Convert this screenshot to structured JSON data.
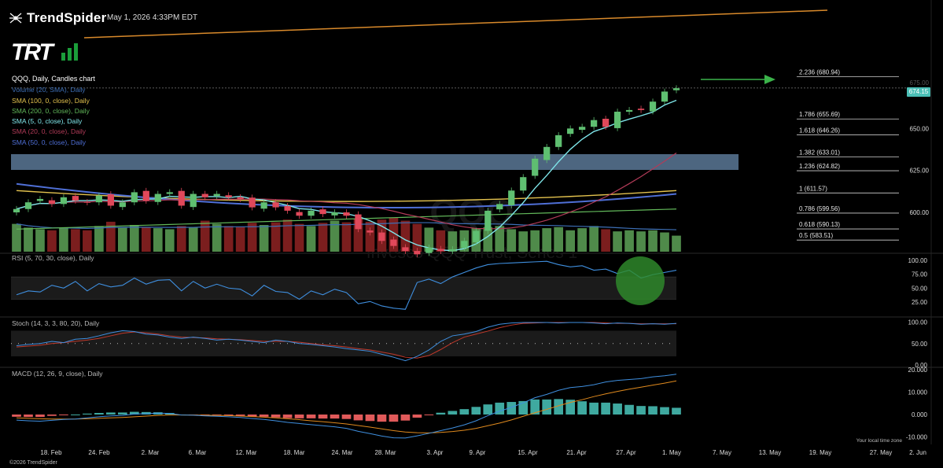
{
  "header": {
    "brand": "TrendSpider",
    "timestamp": "May 1, 2026 4:33PM EDT",
    "logo_text": "TRT"
  },
  "legend": {
    "title": "QQQ, Daily, Candles chart",
    "items": [
      {
        "label": "Volume (20, SMA), Daily",
        "color": "#3d6fb6"
      },
      {
        "label": "SMA (100, 0, close), Daily",
        "color": "#e3c24e"
      },
      {
        "label": "SMA (200, 0, close), Daily",
        "color": "#62b85a"
      },
      {
        "label": "SMA (5, 0, close), Daily",
        "color": "#7fe6ea"
      },
      {
        "label": "SMA (20, 0, close), Daily",
        "color": "#b23b58"
      },
      {
        "label": "SMA (50, 0, close), Daily",
        "color": "#4f6fd6"
      }
    ]
  },
  "watermark": {
    "symbol": "QQQ",
    "name": "Invesco QQQ Trust, Series 1"
  },
  "price_tag": "674.15",
  "chart_data": {
    "type": "candlestick",
    "symbol": "QQQ",
    "interval": "Daily",
    "x_ticks": [
      "18. Feb",
      "24. Feb",
      "2. Mar",
      "6. Mar",
      "12. Mar",
      "18. Mar",
      "24. Mar",
      "28. Mar",
      "3. Apr",
      "9. Apr",
      "15. Apr",
      "21. Apr",
      "27. Apr",
      "1. May",
      "7. May",
      "13. May",
      "19. May",
      "27. May",
      "2. Jun"
    ],
    "y_ticks": [
      600,
      625,
      650,
      675
    ],
    "fibonacci": [
      {
        "level": "2.236",
        "price": 680.94
      },
      {
        "level": "1.786",
        "price": 655.69
      },
      {
        "level": "1.618",
        "price": 646.26
      },
      {
        "level": "1.382",
        "price": 633.01
      },
      {
        "level": "1.236",
        "price": 624.82
      },
      {
        "level": "1",
        "price": 611.57
      },
      {
        "level": "0.786",
        "price": 599.56
      },
      {
        "level": "0.618",
        "price": 590.13
      },
      {
        "level": "0.5",
        "price": 583.51
      }
    ],
    "closes": [
      602,
      606,
      608,
      605,
      609,
      607,
      606,
      610,
      604,
      606,
      612,
      607,
      611,
      612,
      604,
      611,
      609,
      611,
      609,
      608,
      603,
      606,
      603,
      601,
      598,
      601,
      599,
      600,
      598,
      590,
      588,
      583,
      580,
      577,
      575,
      579,
      577,
      578,
      583,
      589,
      601,
      605,
      613,
      621,
      632,
      639,
      646,
      650,
      651,
      655,
      651,
      660,
      661,
      661,
      666,
      672,
      674
    ],
    "volume": [
      52,
      45,
      42,
      40,
      44,
      42,
      40,
      48,
      56,
      45,
      50,
      45,
      44,
      42,
      48,
      45,
      58,
      52,
      48,
      46,
      54,
      50,
      55,
      60,
      52,
      48,
      54,
      58,
      55,
      62,
      56,
      60,
      64,
      58,
      52,
      45,
      40,
      38,
      40,
      44,
      46,
      48,
      42,
      38,
      40,
      44,
      46,
      40,
      44,
      48,
      42,
      38,
      40,
      38,
      40,
      36,
      30
    ],
    "rsi": {
      "label": "RSI (5, 70, 30, close), Daily",
      "ticks": [
        100,
        75,
        50,
        25
      ],
      "values": [
        38,
        45,
        43,
        55,
        50,
        62,
        45,
        58,
        52,
        55,
        68,
        57,
        64,
        65,
        45,
        62,
        50,
        57,
        50,
        48,
        36,
        55,
        44,
        42,
        30,
        45,
        38,
        48,
        42,
        22,
        26,
        18,
        14,
        12,
        60,
        66,
        58,
        70,
        78,
        86,
        92,
        94,
        95,
        96,
        97,
        98,
        92,
        88,
        90,
        82,
        84,
        76,
        82,
        68,
        74,
        78,
        82
      ]
    },
    "stoch": {
      "label": "Stoch (14, 3, 3, 80, 20), Daily",
      "ticks": [
        100,
        50,
        0
      ],
      "k": [
        45,
        48,
        50,
        55,
        52,
        60,
        62,
        68,
        75,
        80,
        78,
        72,
        70,
        65,
        62,
        65,
        62,
        58,
        60,
        58,
        55,
        52,
        58,
        55,
        50,
        48,
        45,
        42,
        38,
        35,
        32,
        25,
        18,
        10,
        20,
        35,
        55,
        68,
        72,
        78,
        88,
        95,
        98,
        99,
        99,
        99,
        98,
        99,
        99,
        98,
        96,
        98,
        97,
        95,
        96,
        95,
        97
      ],
      "d": [
        42,
        44,
        46,
        50,
        52,
        55,
        58,
        62,
        68,
        74,
        77,
        75,
        72,
        68,
        65,
        64,
        63,
        61,
        60,
        59,
        57,
        55,
        55,
        55,
        53,
        50,
        47,
        45,
        42,
        38,
        35,
        30,
        25,
        18,
        16,
        22,
        36,
        52,
        65,
        72,
        79,
        87,
        93,
        97,
        98,
        99,
        99,
        99,
        99,
        99,
        98,
        97,
        97,
        96,
        96,
        96,
        96
      ]
    },
    "macd": {
      "label": "MACD (12, 26, 9, close), Daily",
      "ticks": [
        "20.000",
        "10.000",
        "0.000",
        "-10.000"
      ],
      "macd": [
        -2.5,
        -2.8,
        -3.0,
        -2.6,
        -2.2,
        -2.0,
        -1.5,
        -1.0,
        -0.6,
        -0.4,
        0.2,
        0.4,
        0.6,
        0.5,
        -0.2,
        -0.3,
        -0.6,
        -0.8,
        -1.0,
        -1.3,
        -1.8,
        -2.2,
        -2.8,
        -3.5,
        -4.0,
        -4.5,
        -5.0,
        -5.5,
        -6.2,
        -7.5,
        -8.5,
        -9.6,
        -10.4,
        -10.5,
        -9.5,
        -8.4,
        -7.2,
        -6.0,
        -4.6,
        -2.8,
        -0.5,
        1.5,
        3.2,
        5.2,
        7.5,
        9.0,
        10.8,
        12.0,
        12.5,
        13.3,
        14.5,
        15.2,
        15.6,
        16.0,
        16.8,
        17.3,
        18.0
      ],
      "signal": [
        -1.5,
        -1.7,
        -1.9,
        -2.0,
        -2.0,
        -2.0,
        -1.9,
        -1.7,
        -1.5,
        -1.3,
        -1.0,
        -0.7,
        -0.4,
        -0.2,
        -0.2,
        -0.2,
        -0.3,
        -0.4,
        -0.5,
        -0.7,
        -0.9,
        -1.2,
        -1.5,
        -1.9,
        -2.3,
        -2.8,
        -3.2,
        -3.7,
        -4.2,
        -4.9,
        -5.6,
        -6.4,
        -7.2,
        -7.8,
        -8.1,
        -8.2,
        -8.0,
        -7.6,
        -7.0,
        -6.2,
        -5.0,
        -3.8,
        -2.4,
        -0.8,
        0.8,
        2.3,
        3.9,
        5.4,
        6.6,
        8.0,
        9.2,
        10.3,
        11.3,
        12.2,
        13.1,
        14.0,
        15.0
      ]
    }
  }
}
